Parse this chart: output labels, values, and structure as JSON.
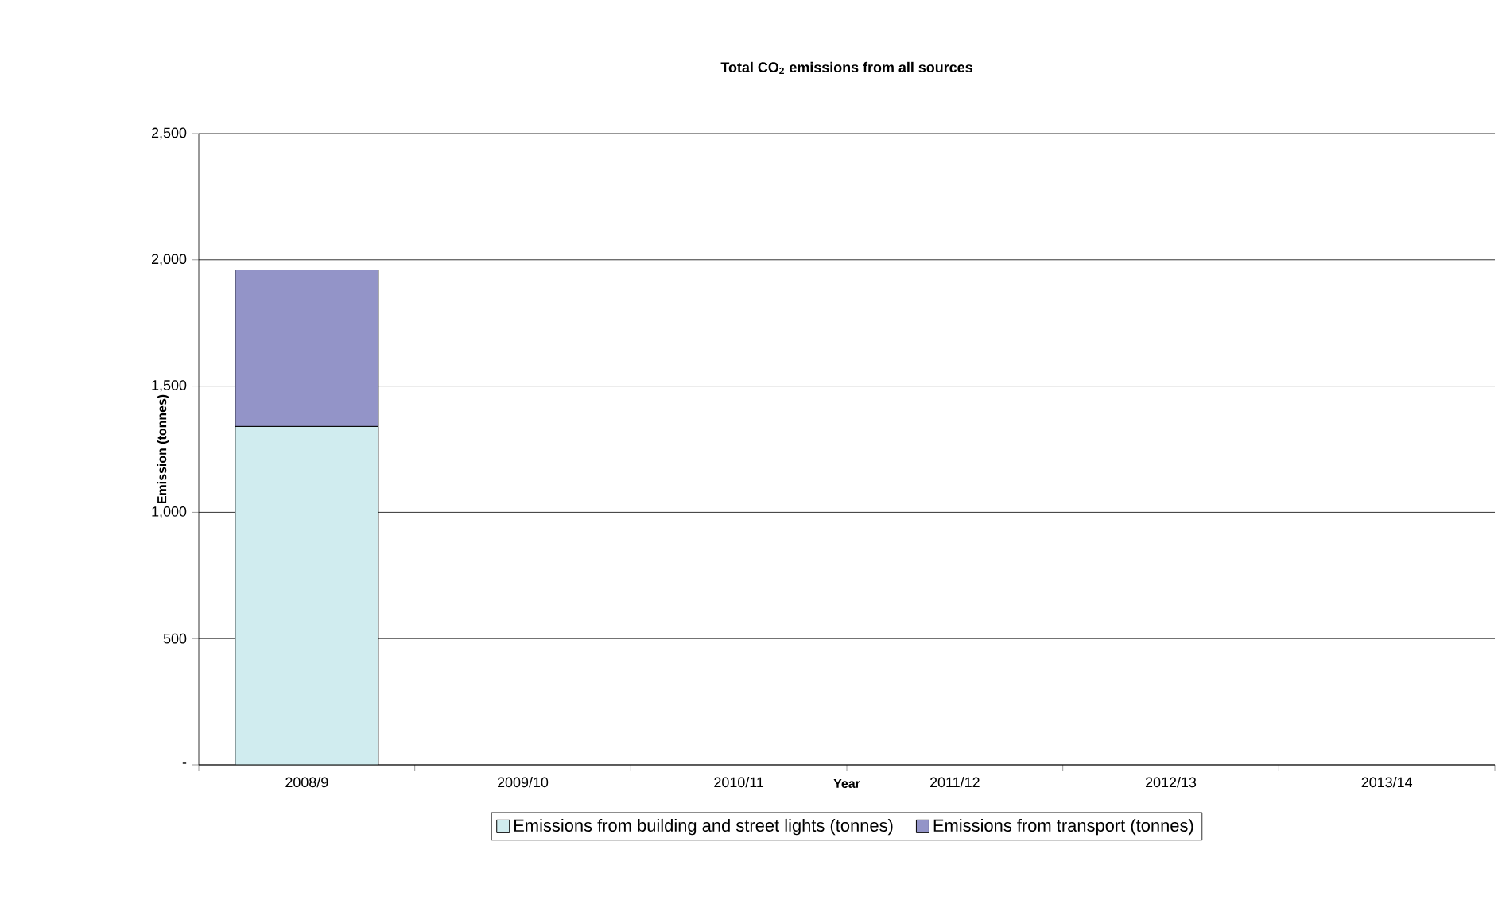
{
  "chart_data": {
    "type": "bar",
    "stacked": true,
    "title": "Total CO$_{2}$ emissions from all sources",
    "xlabel": "Year",
    "ylabel": "Emission (tonnes)",
    "categories": [
      "2008/9",
      "2009/10",
      "2010/11",
      "2011/12",
      "2012/13",
      "2013/14"
    ],
    "series": [
      {
        "name": "Emissions from building and street lights (tonnes)",
        "color": "#d0ecef",
        "values": [
          1340,
          null,
          null,
          null,
          null,
          null
        ]
      },
      {
        "name": "Emissions from transport (tonnes)",
        "color": "#9394c8",
        "values": [
          620,
          null,
          null,
          null,
          null,
          null
        ]
      }
    ],
    "ylim": [
      0,
      2500
    ],
    "yticks": [
      {
        "value": 0,
        "label": "-"
      },
      {
        "value": 500,
        "label": "500"
      },
      {
        "value": 1000,
        "label": "1,000"
      },
      {
        "value": 1500,
        "label": "1,500"
      },
      {
        "value": 2000,
        "label": "2,000"
      },
      {
        "value": 2500,
        "label": "2,500"
      }
    ],
    "grid": "y",
    "legend": "bottom"
  }
}
